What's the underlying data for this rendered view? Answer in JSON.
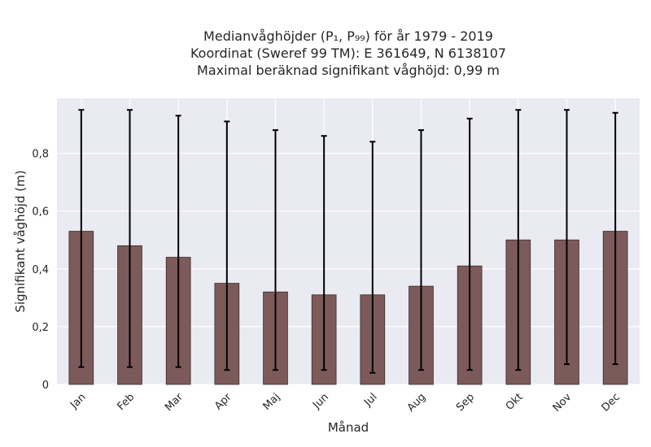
{
  "chart_data": {
    "type": "bar",
    "title_lines": [
      "Medianvåghöjder (P₁, P₉₉) för år 1979 - 2019",
      "Koordinat (Sweref 99 TM): E 361649, N 6138107",
      "Maximal beräknad signifikant våghöjd: 0,99 m"
    ],
    "xlabel": "Månad",
    "ylabel": "Signifikant våghöjd (m)",
    "categories": [
      "Jan",
      "Feb",
      "Mar",
      "Apr",
      "Maj",
      "Jun",
      "Jul",
      "Aug",
      "Sep",
      "Okt",
      "Nov",
      "Dec"
    ],
    "values": [
      0.53,
      0.48,
      0.44,
      0.35,
      0.32,
      0.31,
      0.31,
      0.34,
      0.41,
      0.5,
      0.5,
      0.53
    ],
    "error_low": [
      0.06,
      0.06,
      0.06,
      0.05,
      0.05,
      0.05,
      0.04,
      0.05,
      0.05,
      0.05,
      0.07,
      0.07
    ],
    "error_high": [
      0.95,
      0.95,
      0.93,
      0.91,
      0.88,
      0.86,
      0.84,
      0.88,
      0.92,
      0.95,
      0.95,
      0.94
    ],
    "ylim": [
      0,
      0.99
    ],
    "yticks": [
      0,
      0.2,
      0.4,
      0.6,
      0.8
    ],
    "ytick_labels": [
      "0",
      "0,2",
      "0,4",
      "0,6",
      "0,8"
    ],
    "grid": true,
    "colors": {
      "bar": "#7d5a5a",
      "bar_edge": "#3a2a2a",
      "error": "#000000",
      "plot_bg": "#eaeaf2",
      "grid": "#ffffff"
    }
  }
}
